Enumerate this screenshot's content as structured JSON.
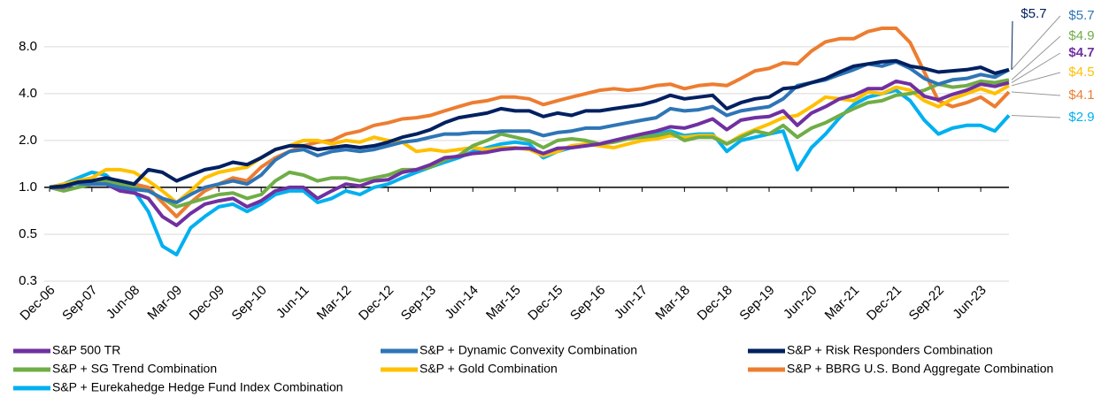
{
  "chart_data": {
    "type": "line",
    "log_scale": true,
    "grid": true,
    "legend_position": "bottom",
    "categories": [
      "Dec-06",
      null,
      null,
      "Sep-07",
      null,
      null,
      "Jun-08",
      null,
      null,
      "Mar-09",
      null,
      null,
      "Dec-09",
      null,
      null,
      "Sep-10",
      null,
      null,
      "Jun-11",
      null,
      null,
      "Mar-12",
      null,
      null,
      "Dec-12",
      null,
      null,
      "Sep-13",
      null,
      null,
      "Jun-14",
      null,
      null,
      "Mar-15",
      null,
      null,
      "Dec-15",
      null,
      null,
      "Sep-16",
      null,
      null,
      "Jun-17",
      null,
      null,
      "Mar-18",
      null,
      null,
      "Dec-18",
      null,
      null,
      "Sep-19",
      null,
      null,
      "Jun-20",
      null,
      null,
      "Mar-21",
      null,
      null,
      "Dec-21",
      null,
      null,
      "Sep-22",
      null,
      null,
      "Jun-23",
      null,
      null
    ],
    "ylim": [
      0.25,
      14
    ],
    "yticks": [
      {
        "value": 0.25,
        "label": "0.3"
      },
      0.5,
      {
        "value": 1,
        "label": "1.0"
      },
      {
        "value": 2,
        "label": "2.0"
      },
      {
        "value": 4,
        "label": "4.0"
      },
      {
        "value": 8,
        "label": "8.0"
      }
    ],
    "series": [
      {
        "name": "S&P 500 TR",
        "color": "#7030a0",
        "values": [
          1.0,
          1.0,
          1.07,
          1.05,
          1.05,
          0.95,
          0.92,
          0.85,
          0.65,
          0.57,
          0.68,
          0.78,
          0.82,
          0.85,
          0.75,
          0.82,
          0.95,
          1.0,
          1.0,
          0.85,
          0.95,
          1.05,
          1.02,
          1.1,
          1.12,
          1.25,
          1.3,
          1.4,
          1.55,
          1.58,
          1.65,
          1.68,
          1.75,
          1.78,
          1.78,
          1.65,
          1.78,
          1.8,
          1.85,
          1.9,
          2.0,
          2.1,
          2.2,
          2.3,
          2.45,
          2.4,
          2.55,
          2.75,
          2.35,
          2.7,
          2.8,
          2.85,
          3.1,
          2.5,
          3.0,
          3.3,
          3.7,
          3.9,
          4.3,
          4.3,
          4.8,
          4.6,
          3.85,
          3.65,
          3.95,
          4.2,
          4.6,
          4.45,
          4.7
        ],
        "value_labels": {
          "68": "$4.7"
        }
      },
      {
        "name": "S&P + Dynamic Convexity Combination",
        "color": "#2e75b6",
        "values": [
          1.0,
          1.02,
          1.06,
          1.05,
          1.05,
          1.0,
          0.97,
          0.95,
          0.85,
          0.8,
          0.9,
          1.0,
          1.05,
          1.1,
          1.05,
          1.2,
          1.5,
          1.7,
          1.75,
          1.6,
          1.7,
          1.75,
          1.7,
          1.75,
          1.85,
          1.95,
          2.0,
          2.1,
          2.2,
          2.2,
          2.25,
          2.25,
          2.3,
          2.3,
          2.3,
          2.15,
          2.25,
          2.3,
          2.4,
          2.4,
          2.5,
          2.6,
          2.7,
          2.8,
          3.2,
          3.1,
          3.15,
          3.3,
          2.9,
          3.1,
          3.2,
          3.3,
          3.7,
          4.5,
          4.7,
          4.9,
          5.3,
          5.7,
          6.2,
          6.0,
          6.4,
          5.8,
          5.0,
          4.6,
          4.9,
          5.0,
          5.3,
          5.1,
          5.7
        ],
        "value_labels": {
          "68": "$5.7"
        }
      },
      {
        "name": "S&P + Risk Responders Combination",
        "color": "#002060",
        "values": [
          1.0,
          1.02,
          1.08,
          1.1,
          1.15,
          1.1,
          1.05,
          1.3,
          1.25,
          1.1,
          1.2,
          1.3,
          1.35,
          1.45,
          1.4,
          1.55,
          1.75,
          1.85,
          1.85,
          1.75,
          1.8,
          1.85,
          1.8,
          1.85,
          1.95,
          2.1,
          2.2,
          2.35,
          2.6,
          2.8,
          2.9,
          3.0,
          3.2,
          3.1,
          3.1,
          2.85,
          3.0,
          2.9,
          3.1,
          3.1,
          3.2,
          3.3,
          3.4,
          3.6,
          3.9,
          3.7,
          3.8,
          3.9,
          3.2,
          3.5,
          3.7,
          3.8,
          4.3,
          4.4,
          4.7,
          5.0,
          5.5,
          6.0,
          6.2,
          6.4,
          6.5,
          6.0,
          5.8,
          5.5,
          5.6,
          5.7,
          5.9,
          5.4,
          5.7
        ],
        "value_labels": {
          "68": "$5.7"
        }
      },
      {
        "name": "S&P + SG Trend Combination",
        "color": "#70ad47",
        "values": [
          1.0,
          0.95,
          1.0,
          1.05,
          1.1,
          1.05,
          1.0,
          0.95,
          0.85,
          0.75,
          0.8,
          0.85,
          0.9,
          0.92,
          0.85,
          0.9,
          1.1,
          1.25,
          1.2,
          1.1,
          1.15,
          1.15,
          1.1,
          1.15,
          1.2,
          1.3,
          1.3,
          1.35,
          1.5,
          1.6,
          1.85,
          2.0,
          2.2,
          2.1,
          2.0,
          1.8,
          2.0,
          2.05,
          2.0,
          1.9,
          1.95,
          2.05,
          2.1,
          2.15,
          2.25,
          2.0,
          2.1,
          2.1,
          1.9,
          2.1,
          2.3,
          2.2,
          2.5,
          2.1,
          2.4,
          2.6,
          2.9,
          3.2,
          3.5,
          3.6,
          3.9,
          4.0,
          4.2,
          4.6,
          4.4,
          4.5,
          4.8,
          4.7,
          4.9
        ],
        "value_labels": {
          "68": "$4.9"
        }
      },
      {
        "name": "S&P + Gold Combination",
        "color": "#ffc000",
        "values": [
          1.0,
          1.05,
          1.1,
          1.15,
          1.3,
          1.3,
          1.25,
          1.1,
          0.95,
          0.8,
          0.95,
          1.15,
          1.25,
          1.3,
          1.35,
          1.55,
          1.75,
          1.85,
          2.0,
          2.0,
          1.9,
          2.0,
          1.95,
          2.1,
          2.0,
          1.95,
          1.7,
          1.75,
          1.7,
          1.75,
          1.8,
          1.75,
          1.8,
          1.8,
          1.75,
          1.6,
          1.7,
          1.85,
          1.9,
          1.85,
          1.8,
          1.9,
          2.0,
          2.05,
          2.15,
          2.1,
          2.15,
          2.15,
          1.9,
          2.15,
          2.35,
          2.55,
          2.8,
          2.9,
          3.3,
          3.8,
          3.7,
          3.6,
          4.1,
          4.0,
          4.4,
          4.2,
          3.6,
          3.3,
          3.7,
          4.0,
          4.3,
          4.0,
          4.5
        ],
        "value_labels": {
          "68": "$4.5"
        }
      },
      {
        "name": "S&P + BBRG U.S. Bond Aggregate Combination",
        "color": "#ed7d31",
        "values": [
          1.0,
          1.02,
          1.07,
          1.1,
          1.15,
          1.1,
          1.05,
          1.0,
          0.8,
          0.65,
          0.8,
          0.95,
          1.05,
          1.15,
          1.1,
          1.35,
          1.55,
          1.7,
          1.85,
          1.95,
          2.0,
          2.2,
          2.3,
          2.5,
          2.6,
          2.75,
          2.8,
          2.9,
          3.1,
          3.3,
          3.5,
          3.6,
          3.8,
          3.8,
          3.7,
          3.4,
          3.6,
          3.8,
          4.0,
          4.2,
          4.3,
          4.2,
          4.3,
          4.5,
          4.6,
          4.3,
          4.5,
          4.6,
          4.5,
          5.0,
          5.6,
          5.8,
          6.3,
          6.2,
          7.5,
          8.6,
          9.0,
          9.0,
          10.0,
          10.5,
          10.5,
          8.5,
          5.5,
          3.6,
          3.3,
          3.5,
          3.8,
          3.3,
          4.1
        ],
        "value_labels": {
          "68": "$4.1"
        }
      },
      {
        "name": "S&P + Eurekahedge Hedge Fund Index Combination",
        "color": "#00b0f0",
        "values": [
          1.0,
          1.05,
          1.15,
          1.25,
          1.2,
          1.0,
          0.95,
          0.7,
          0.42,
          0.37,
          0.55,
          0.65,
          0.75,
          0.78,
          0.7,
          0.78,
          0.9,
          0.95,
          0.95,
          0.8,
          0.85,
          0.95,
          0.9,
          1.0,
          1.05,
          1.15,
          1.25,
          1.35,
          1.45,
          1.55,
          1.7,
          1.8,
          1.9,
          1.95,
          1.9,
          1.55,
          1.7,
          1.8,
          1.85,
          1.9,
          2.0,
          2.1,
          2.15,
          2.2,
          2.3,
          2.15,
          2.2,
          2.2,
          1.7,
          2.0,
          2.1,
          2.2,
          2.3,
          1.3,
          1.8,
          2.2,
          2.8,
          3.4,
          3.8,
          4.0,
          4.2,
          3.6,
          2.7,
          2.2,
          2.4,
          2.5,
          2.5,
          2.3,
          2.9
        ],
        "value_labels": {
          "68": "$2.9"
        }
      }
    ]
  }
}
